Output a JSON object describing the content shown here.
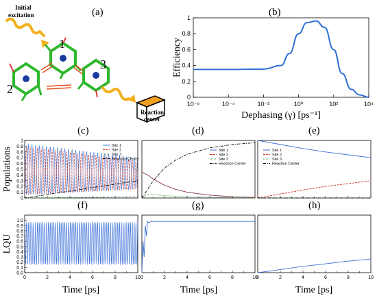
{
  "panel_labels": {
    "a": "(a)",
    "b": "(b)",
    "c": "(c)",
    "d": "(d)",
    "e": "(e)",
    "f": "(f)",
    "g": "(g)",
    "h": "(h)"
  },
  "schematic": {
    "initial_excitation": [
      "Initial",
      "excitation"
    ],
    "site_numbers": [
      "1",
      "2",
      "3"
    ],
    "reaction_center": [
      "Reaction",
      "center"
    ]
  },
  "colors": {
    "site1": "#3a6fd8",
    "site2": "#cc2a1f",
    "site3": "#3a9a3a",
    "reaction_center": "#000000",
    "efficiency": "#2b6fd6",
    "molecule": "#2db82d",
    "arrow": "#f2b01d"
  },
  "chart_data": [
    {
      "id": "b",
      "type": "line",
      "xscale": "log",
      "xlabel": "Dephasing (γ) [ps⁻¹]",
      "ylabel": "Efficiency",
      "xlim": [
        1e-06,
        10000.0
      ],
      "ylim": [
        0,
        1
      ],
      "xticks": [
        "10⁻⁶",
        "10⁻⁴",
        "10⁻²",
        "10⁰",
        "10²",
        "10⁴"
      ],
      "yticks": [
        "0",
        "0.2",
        "0.4",
        "0.6",
        "0.8",
        "1"
      ],
      "series": [
        {
          "x": [
            1e-06,
            0.0001,
            0.01,
            0.1,
            0.3,
            1,
            3,
            10,
            30,
            100,
            300,
            1000,
            3000,
            10000
          ],
          "values": [
            0.35,
            0.35,
            0.355,
            0.4,
            0.55,
            0.8,
            0.94,
            0.96,
            0.88,
            0.6,
            0.3,
            0.1,
            0.03,
            0.0
          ]
        }
      ]
    },
    {
      "id": "c",
      "type": "line",
      "ylabel": "Populations",
      "xlim": [
        0,
        10
      ],
      "ylim": [
        0,
        1
      ],
      "yticks": [
        "0",
        "0.1",
        "0.2",
        "0.3",
        "0.4",
        "0.5",
        "0.6",
        "0.7",
        "0.8",
        "0.9",
        "1"
      ],
      "legend": [
        "Site 1",
        "Site 2",
        "Site 3",
        "Reaction Center"
      ],
      "series": [
        {
          "name": "Site 1",
          "oscillating": true,
          "envelope_upper_start": 0.95,
          "envelope_upper_end": 0.7,
          "envelope_lower_start": 0.05,
          "envelope_lower_end": 0.15
        },
        {
          "name": "Site 2",
          "oscillating": true,
          "envelope_upper_start": 0.9,
          "envelope_upper_end": 0.65,
          "envelope_lower_start": 0.05,
          "envelope_lower_end": 0.15
        },
        {
          "name": "Site 3",
          "x": [
            0,
            10
          ],
          "values": [
            0.0,
            0.02
          ]
        },
        {
          "name": "Reaction Center",
          "x": [
            0,
            2,
            4,
            6,
            8,
            10
          ],
          "values": [
            0.0,
            0.06,
            0.12,
            0.18,
            0.24,
            0.3
          ]
        }
      ]
    },
    {
      "id": "d",
      "type": "line",
      "xlim": [
        0,
        10
      ],
      "ylim": [
        0,
        1
      ],
      "legend": [
        "Site 1",
        "Site 2",
        "Site 3",
        "Reaction Center"
      ],
      "series": [
        {
          "name": "Site 1",
          "x": [
            0,
            0.5,
            1,
            2,
            3,
            4,
            6,
            8,
            10
          ],
          "values": [
            0.45,
            0.4,
            0.33,
            0.22,
            0.15,
            0.1,
            0.05,
            0.02,
            0.01
          ]
        },
        {
          "name": "Site 2",
          "x": [
            0,
            0.5,
            1,
            2,
            3,
            4,
            6,
            8,
            10
          ],
          "values": [
            0.45,
            0.4,
            0.33,
            0.22,
            0.15,
            0.1,
            0.05,
            0.02,
            0.01
          ]
        },
        {
          "name": "Site 3",
          "x": [
            0,
            0.5,
            1,
            2,
            4,
            10
          ],
          "values": [
            0.0,
            0.06,
            0.06,
            0.04,
            0.02,
            0.0
          ]
        },
        {
          "name": "Reaction Center",
          "x": [
            0,
            1,
            2,
            3,
            4,
            6,
            8,
            10
          ],
          "values": [
            0.0,
            0.3,
            0.52,
            0.66,
            0.76,
            0.87,
            0.93,
            0.96
          ]
        }
      ]
    },
    {
      "id": "e",
      "type": "line",
      "xlim": [
        0,
        10
      ],
      "ylim": [
        0,
        1
      ],
      "legend": [
        "Site 1",
        "Site 2",
        "Site 3",
        "Reaction Center"
      ],
      "series": [
        {
          "name": "Site 1",
          "x": [
            0,
            2,
            4,
            6,
            8,
            10
          ],
          "values": [
            1.0,
            0.93,
            0.86,
            0.8,
            0.75,
            0.7
          ]
        },
        {
          "name": "Site 2",
          "x": [
            0,
            2,
            4,
            6,
            8,
            10
          ],
          "values": [
            0.0,
            0.07,
            0.14,
            0.2,
            0.25,
            0.3
          ]
        },
        {
          "name": "Site 3",
          "x": [
            0,
            10
          ],
          "values": [
            0.0,
            0.0
          ]
        },
        {
          "name": "Reaction Center",
          "x": [
            0,
            10
          ],
          "values": [
            0.0,
            0.0
          ]
        }
      ]
    },
    {
      "id": "f",
      "type": "line",
      "ylabel": "LQU",
      "xlabel": "Time [ps]",
      "xlim": [
        0,
        10
      ],
      "ylim": [
        0,
        1.1
      ],
      "xticks": [
        "0",
        "2",
        "4",
        "6",
        "8",
        "10"
      ],
      "yticks": [
        "0.0",
        "0.1",
        "0.2",
        "0.3",
        "0.4",
        "0.5",
        "0.6",
        "0.7",
        "0.8",
        "0.9",
        "1.0"
      ],
      "series": [
        {
          "name": "LQU",
          "oscillating": true,
          "min": 0.15,
          "max": 0.97
        }
      ]
    },
    {
      "id": "g",
      "type": "line",
      "xlabel": "Time [ps]",
      "xlim": [
        0,
        10
      ],
      "ylim": [
        0,
        1.1
      ],
      "xticks": [
        "0",
        "2",
        "4",
        "6",
        "8",
        "10"
      ],
      "series": [
        {
          "name": "LQU",
          "x": [
            0,
            0.1,
            0.2,
            0.3,
            0.4,
            0.5,
            0.6,
            0.8,
            10
          ],
          "values": [
            0.0,
            0.6,
            0.3,
            0.9,
            0.7,
            0.98,
            0.95,
            0.98,
            0.98
          ]
        }
      ]
    },
    {
      "id": "h",
      "type": "line",
      "xlabel": "Time [ps]",
      "xlim": [
        0,
        10
      ],
      "ylim": [
        0,
        1.1
      ],
      "xticks": [
        "0",
        "2",
        "4",
        "6",
        "8",
        "10"
      ],
      "series": [
        {
          "name": "LQU",
          "x": [
            0,
            2,
            4,
            6,
            8,
            10
          ],
          "values": [
            0.0,
            0.06,
            0.12,
            0.17,
            0.22,
            0.26
          ]
        }
      ]
    }
  ]
}
